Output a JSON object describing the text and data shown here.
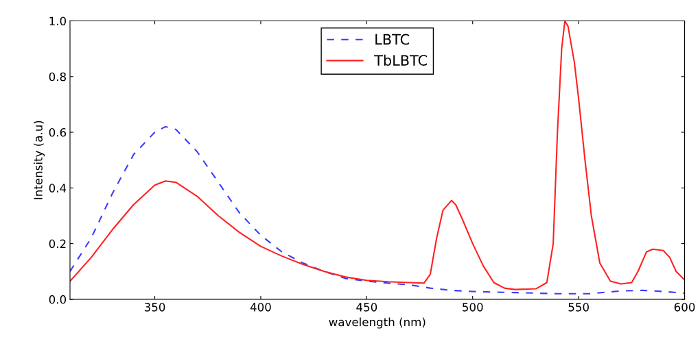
{
  "chart_data": {
    "type": "line",
    "xlabel": "wavelength (nm)",
    "ylabel": "Intensity (a.u)",
    "xlim": [
      310,
      600
    ],
    "xticks": [
      350,
      400,
      450,
      500,
      550,
      600
    ],
    "ylim": [
      0,
      1.0
    ],
    "yticks": [
      {
        "value": 0,
        "label": "0.0"
      },
      0.2,
      0.4,
      0.6,
      0.8,
      {
        "value": 1.0,
        "label": "1.0"
      }
    ],
    "grid": false,
    "legend": "top center",
    "series": [
      {
        "name": "LBTC",
        "color": "#3b3bff",
        "line_style": "dashed",
        "x": [
          310,
          320,
          330,
          340,
          350,
          355,
          360,
          370,
          380,
          390,
          400,
          410,
          420,
          430,
          440,
          450,
          460,
          470,
          480,
          490,
          500,
          520,
          540,
          555,
          570,
          580,
          590,
          600
        ],
        "values": [
          0.1,
          0.22,
          0.38,
          0.52,
          0.6,
          0.62,
          0.61,
          0.53,
          0.42,
          0.31,
          0.23,
          0.17,
          0.13,
          0.1,
          0.075,
          0.065,
          0.058,
          0.052,
          0.04,
          0.032,
          0.028,
          0.024,
          0.02,
          0.02,
          0.03,
          0.032,
          0.028,
          0.022
        ]
      },
      {
        "name": "TbLBTC",
        "color": "#ff2020",
        "line_style": "solid",
        "x": [
          310,
          320,
          330,
          340,
          350,
          355,
          360,
          370,
          380,
          390,
          400,
          410,
          420,
          430,
          440,
          450,
          460,
          470,
          477,
          480,
          483,
          486,
          490,
          492,
          495,
          500,
          505,
          510,
          515,
          520,
          530,
          535,
          538,
          540,
          542,
          543.5,
          545,
          548,
          550,
          553,
          556,
          560,
          565,
          570,
          575,
          578,
          582,
          585,
          590,
          593,
          596,
          600
        ],
        "values": [
          0.065,
          0.15,
          0.25,
          0.34,
          0.41,
          0.425,
          0.42,
          0.37,
          0.3,
          0.24,
          0.19,
          0.155,
          0.125,
          0.1,
          0.08,
          0.068,
          0.063,
          0.06,
          0.058,
          0.09,
          0.22,
          0.32,
          0.355,
          0.34,
          0.29,
          0.2,
          0.12,
          0.06,
          0.04,
          0.035,
          0.038,
          0.06,
          0.2,
          0.6,
          0.9,
          1.0,
          0.98,
          0.85,
          0.72,
          0.5,
          0.3,
          0.13,
          0.065,
          0.055,
          0.06,
          0.1,
          0.17,
          0.18,
          0.175,
          0.15,
          0.1,
          0.07
        ]
      }
    ]
  }
}
